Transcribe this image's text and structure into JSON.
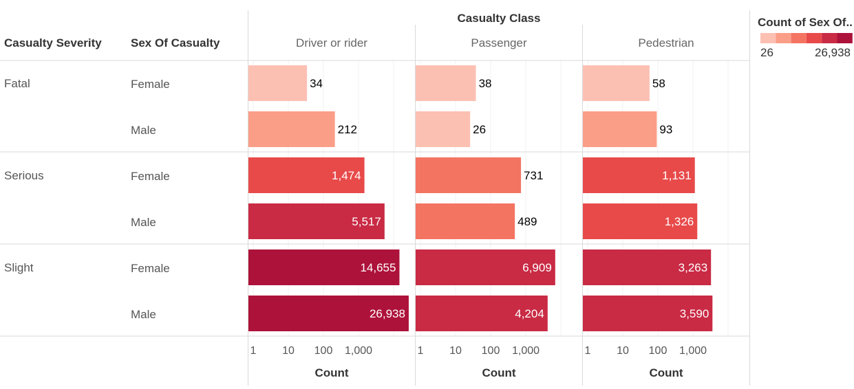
{
  "chart_data": {
    "type": "bar",
    "orientation": "horizontal",
    "x_scale": "log",
    "title": "",
    "column_header": "Casualty Class",
    "row_headers": [
      "Casualty Severity",
      "Sex Of Casualty"
    ],
    "columns": [
      "Driver or rider",
      "Passenger",
      "Pedestrian"
    ],
    "rows": [
      {
        "severity": "Fatal",
        "sex": "Female"
      },
      {
        "severity": "",
        "sex": "Male"
      },
      {
        "severity": "Serious",
        "sex": "Female"
      },
      {
        "severity": "",
        "sex": "Male"
      },
      {
        "severity": "Slight",
        "sex": "Female"
      },
      {
        "severity": "",
        "sex": "Male"
      }
    ],
    "values": [
      [
        34,
        38,
        58
      ],
      [
        212,
        26,
        93
      ],
      [
        1474,
        731,
        1131
      ],
      [
        5517,
        489,
        1326
      ],
      [
        14655,
        6909,
        3263
      ],
      [
        26938,
        4204,
        3590
      ]
    ],
    "value_labels": [
      [
        "34",
        "38",
        "58"
      ],
      [
        "212",
        "26",
        "93"
      ],
      [
        "1,474",
        "731",
        "1,131"
      ],
      [
        "5,517",
        "489",
        "1,326"
      ],
      [
        "14,655",
        "6,909",
        "3,263"
      ],
      [
        "26,938",
        "4,204",
        "3,590"
      ]
    ],
    "xlabel": "Count",
    "xticks": [
      1,
      10,
      100,
      1000
    ],
    "xtick_labels": [
      "1",
      "10",
      "100",
      "1,000"
    ],
    "xlim": [
      1,
      40000
    ],
    "legend": {
      "title": "Count of Sex Of..",
      "min_label": "26",
      "max_label": "26,938",
      "min": 26,
      "max": 26938,
      "colors": [
        "#fcc0b3",
        "#fb9e88",
        "#f47462",
        "#e84a4a",
        "#c92a44",
        "#ad123a"
      ],
      "placement": "top-right"
    },
    "label_color_dark": "#000000",
    "label_color_light": "#ffffff",
    "grid": true
  }
}
